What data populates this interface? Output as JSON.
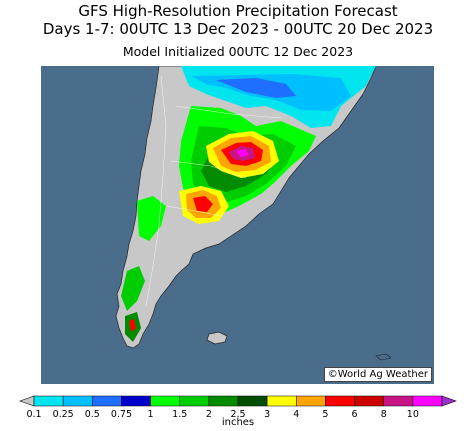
{
  "header": {
    "line1": "GFS High-Resolution Precipitation Forecast",
    "line2": "Days 1-7: 00UTC 13 Dec 2023 - 00UTC 20 Dec 2023",
    "line3": "Model Initialized 00UTC 12 Dec 2023"
  },
  "map": {
    "ocean_color": "#4a6d8c",
    "land_color": "#c8c8c8",
    "credit": "©World Ag Weather"
  },
  "legend": {
    "units": "inches",
    "bins": [
      {
        "label": "0.1",
        "color": "#00e5ee"
      },
      {
        "label": "0.25",
        "color": "#00bfff"
      },
      {
        "label": "0.5",
        "color": "#1e6eff"
      },
      {
        "label": "0.75",
        "color": "#0000cd"
      },
      {
        "label": "1",
        "color": "#00ff00"
      },
      {
        "label": "1.5",
        "color": "#00cd00"
      },
      {
        "label": "2",
        "color": "#008b00"
      },
      {
        "label": "2.5",
        "color": "#004d00"
      },
      {
        "label": "3",
        "color": "#ffff00"
      },
      {
        "label": "4",
        "color": "#ffa500"
      },
      {
        "label": "5",
        "color": "#ff0000"
      },
      {
        "label": "6",
        "color": "#cd0000"
      },
      {
        "label": "8",
        "color": "#c71585"
      },
      {
        "label": "10",
        "color": "#ff00ff"
      }
    ],
    "over_color": "#9932cc",
    "under_color": "#c8c8c8"
  }
}
